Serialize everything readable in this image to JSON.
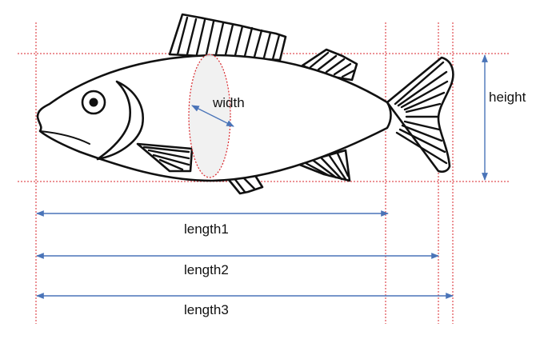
{
  "labels": {
    "width": "width",
    "height": "height",
    "length1": "length1",
    "length2": "length2",
    "length3": "length3"
  },
  "colors": {
    "guide_lines": "#d9262b",
    "dimension_arrows": "#4a74b8",
    "outline": "#111111",
    "cross_section_fill": "#eeeeee"
  },
  "icons": {
    "subject": "fish-icon"
  }
}
